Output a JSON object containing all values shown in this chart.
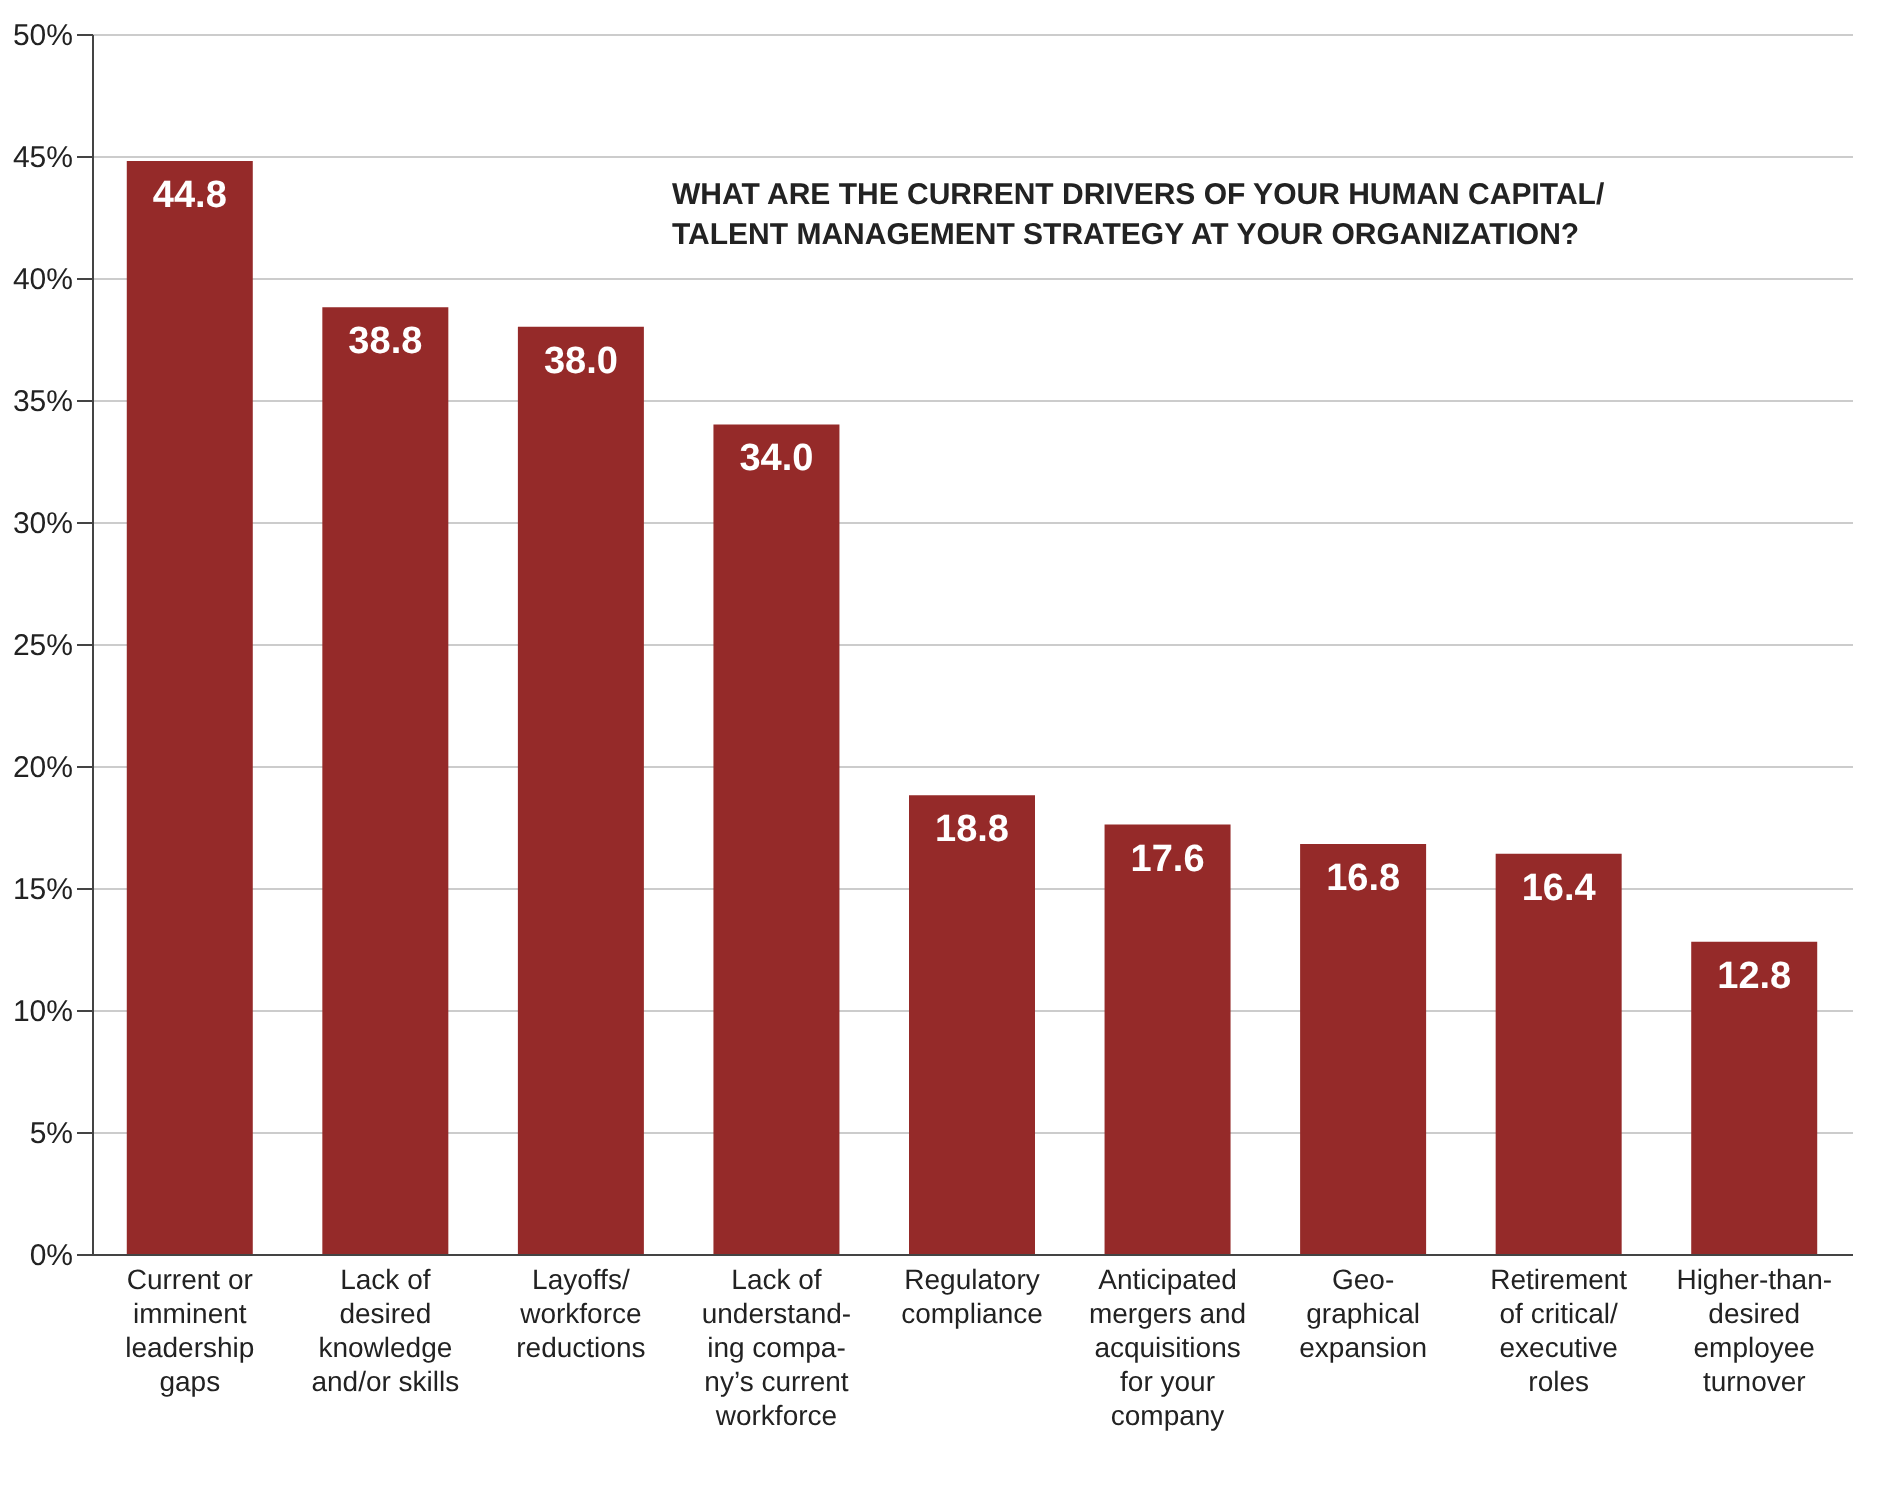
{
  "chart_data": {
    "type": "bar",
    "title": "WHAT ARE THE CURRENT DRIVERS OF YOUR HUMAN CAPITAL/\nTALENT MANAGEMENT STRATEGY AT YOUR ORGANIZATION?",
    "categories": [
      "Current or\nimminent\nleadership\ngaps",
      "Lack of\ndesired\nknowledge\nand/or skills",
      "Layoffs/\nworkforce\nreductions",
      "Lack of\nunderstand-\ning compa-\nny’s current\nworkforce",
      "Regulatory\ncompliance",
      "Anticipated\nmergers and\nacquisitions\nfor your\ncompany",
      "Geo-\ngraphical\nexpansion",
      "Retirement\nof critical/\nexecutive\nroles",
      "Higher-than-\ndesired\nemployee\nturnover"
    ],
    "values": [
      44.8,
      38.8,
      38.0,
      34.0,
      18.8,
      17.6,
      16.8,
      16.4,
      12.8
    ],
    "color": "#952a29",
    "ylim": [
      0,
      50
    ],
    "yticks": [
      {
        "value": 0,
        "label": "0%"
      },
      {
        "value": 5,
        "label": "5%"
      },
      {
        "value": 10,
        "label": "10%"
      },
      {
        "value": 15,
        "label": "15%"
      },
      {
        "value": 20,
        "label": "20%"
      },
      {
        "value": 25,
        "label": "25%"
      },
      {
        "value": 30,
        "label": "30%"
      },
      {
        "value": 35,
        "label": "35%"
      },
      {
        "value": 40,
        "label": "40%"
      },
      {
        "value": 45,
        "label": "45%"
      },
      {
        "value": 50,
        "label": "50%"
      }
    ],
    "grid": "y",
    "value_labels": [
      "44.8",
      "38.8",
      "38.0",
      "34.0",
      "18.8",
      "17.6",
      "16.8",
      "16.4",
      "12.8"
    ]
  }
}
